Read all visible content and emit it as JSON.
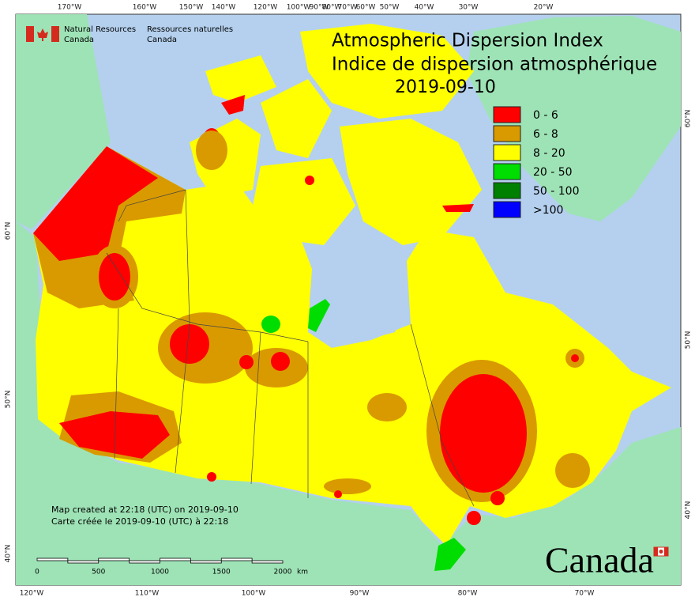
{
  "header": {
    "title_en": "Atmospheric Dispersion Index",
    "title_fr": "Indice de dispersion atmosphérique",
    "date": "2019-09-10"
  },
  "agency": {
    "en": [
      "Natural Resources",
      "Canada"
    ],
    "fr": [
      "Ressources naturelles",
      "Canada"
    ]
  },
  "legend": [
    {
      "label": "0 - 6",
      "color": "#ff0000"
    },
    {
      "label": "6 - 8",
      "color": "#d99a00"
    },
    {
      "label": "8 - 20",
      "color": "#ffff00"
    },
    {
      "label": "20 - 50",
      "color": "#00dd00"
    },
    {
      "label": "50 - 100",
      "color": "#008000"
    },
    {
      "label": ">100",
      "color": "#0000ff"
    }
  ],
  "note": [
    "Map created at 22:18 (UTC) on 2019-09-10",
    "Carte créée le 2019-09-10 (UTC) à 22:18"
  ],
  "scale_bar": {
    "ticks": [
      "0",
      "500",
      "1000",
      "1500",
      "2000"
    ],
    "unit": "km"
  },
  "top_longitudes": [
    "170°W",
    "160°W",
    "150°W",
    "140°W",
    "120°W",
    "100°W",
    "90°W",
    "80°W",
    "70°W",
    "60°W",
    "50°W",
    "40°W",
    "30°W",
    "20°W"
  ],
  "bottom_longitudes": [
    "120°W",
    "110°W",
    "100°W",
    "90°W",
    "80°W",
    "70°W"
  ],
  "left_latitudes": [
    "60°N",
    "50°N",
    "40°N"
  ],
  "right_latitudes": [
    "60°N",
    "50°N",
    "40°N"
  ],
  "wordmark": "Canada"
}
